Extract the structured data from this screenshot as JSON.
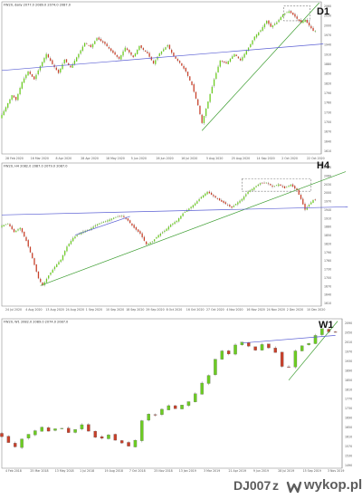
{
  "chart_data": [
    {
      "type": "candlestick",
      "timeframe_label": "D1",
      "header_text": "FW20, daily 2077.0 2089.0 2074.0 2087.0",
      "x_tick_labels": [
        "28 Feb 2020",
        "16 Mar 2020",
        "8 Apr 2020",
        "28 Apr 2020",
        "18 May 2020",
        "5 Jun 2020",
        "26 Jun 2020",
        "16 Jul 2020",
        "5 Aug 2020",
        "25 Aug 2020",
        "14 Sep 2020",
        "2 Oct 2020",
        "22 Oct 2020"
      ],
      "y_tick_labels": [
        "2060",
        "2030",
        "2000",
        "1970",
        "1940",
        "1910",
        "1880",
        "1850",
        "1820",
        "1790",
        "1760",
        "1730",
        "1700",
        "1670",
        "1640",
        "1610"
      ],
      "ylim": [
        1600,
        2075
      ],
      "price_path": [
        [
          0,
          1705
        ],
        [
          6,
          1742
        ],
        [
          12,
          1780
        ],
        [
          16,
          1765
        ],
        [
          22,
          1822
        ],
        [
          28,
          1855
        ],
        [
          34,
          1830
        ],
        [
          40,
          1872
        ],
        [
          46,
          1910
        ],
        [
          52,
          1878
        ],
        [
          58,
          1850
        ],
        [
          64,
          1892
        ],
        [
          70,
          1868
        ],
        [
          78,
          1910
        ],
        [
          84,
          1945
        ],
        [
          90,
          1932
        ],
        [
          96,
          1960
        ],
        [
          104,
          1942
        ],
        [
          110,
          1920
        ],
        [
          118,
          1895
        ],
        [
          124,
          1930
        ],
        [
          132,
          1900
        ],
        [
          138,
          1935
        ],
        [
          146,
          1912
        ],
        [
          152,
          1880
        ],
        [
          158,
          1912
        ],
        [
          166,
          1938
        ],
        [
          172,
          1902
        ],
        [
          178,
          1882
        ],
        [
          184,
          1855
        ],
        [
          190,
          1812
        ],
        [
          196,
          1748
        ],
        [
          200,
          1692
        ],
        [
          206,
          1760
        ],
        [
          212,
          1830
        ],
        [
          218,
          1890
        ],
        [
          224,
          1880
        ],
        [
          232,
          1910
        ],
        [
          238,
          1890
        ],
        [
          246,
          1930
        ],
        [
          252,
          1965
        ],
        [
          258,
          1985
        ],
        [
          264,
          2015
        ],
        [
          268,
          1996
        ],
        [
          274,
          2010
        ],
        [
          280,
          2035
        ],
        [
          286,
          2045
        ],
        [
          292,
          2028
        ],
        [
          298,
          2008
        ],
        [
          302,
          2018
        ],
        [
          306,
          2000
        ],
        [
          310,
          1983
        ]
      ],
      "trendlines": [
        {
          "kind": "support",
          "color": "#3a9c2e",
          "from": [
            198,
            1668
          ],
          "to": [
            314,
            2072
          ]
        },
        {
          "kind": "resistance",
          "color": "#5a5fd4",
          "from": [
            0,
            1858
          ],
          "to": [
            318,
            1942
          ]
        }
      ],
      "zones": [
        {
          "from_index": 279,
          "to_index": 305,
          "low": 2015,
          "high": 2062
        }
      ]
    },
    {
      "type": "candlestick",
      "timeframe_label": "H4",
      "header_text": "FW20, H4 2082.0 2087.0 2079.0 2087.0",
      "x_tick_labels": [
        "24 Jul 2020",
        "4 Aug 2020",
        "13 Aug 2020",
        "24 Aug 2020",
        "1 Sep 2020",
        "10 Sep 2020",
        "18 Sep 2020",
        "29 Sep 2020",
        "8 Oct 2020",
        "16 Oct 2020",
        "27 Oct 2020",
        "4 Nov 2020",
        "16 Nov 2020",
        "24 Nov 2020",
        "2 Dec 2020",
        "10 Dec 2020",
        "21 Dec 2020",
        "30 Dec 2020",
        "11 Jan 2021",
        "19 Jan 2021",
        "28 Jan 2021",
        "5 Feb 2021",
        "16 Feb 2021",
        "24 Feb 2021",
        "4 Mar 2021",
        "12 Mar 2021",
        "23 Mar 2021",
        "31 Mar 2021",
        "8 Apr 2021",
        "16 Apr 2021",
        "27 Apr 2021",
        "5 May 2021",
        "13 May 2021",
        "24 May 2021",
        "2 Jun 2021",
        "10 Jun 2021",
        "18 Jun 2021",
        "28 Jun 2021",
        "6 Jul 2021",
        "14 Jul 2021",
        "22 Jul 2021",
        "30 Jul 2021"
      ],
      "y_tick_labels": [
        "2090",
        "2060",
        "2030",
        "2000",
        "1970",
        "1940",
        "1910",
        "1880",
        "1850",
        "1820",
        "1790",
        "1760",
        "1730",
        "1700",
        "1670",
        "1640",
        "1610"
      ],
      "ylim": [
        1600,
        2090
      ],
      "price_path": [
        [
          0,
          1870
        ],
        [
          8,
          1880
        ],
        [
          14,
          1850
        ],
        [
          20,
          1865
        ],
        [
          26,
          1820
        ],
        [
          32,
          1760
        ],
        [
          38,
          1690
        ],
        [
          42,
          1665
        ],
        [
          48,
          1700
        ],
        [
          54,
          1730
        ],
        [
          60,
          1755
        ],
        [
          66,
          1800
        ],
        [
          72,
          1830
        ],
        [
          80,
          1850
        ],
        [
          88,
          1860
        ],
        [
          96,
          1878
        ],
        [
          104,
          1888
        ],
        [
          112,
          1900
        ],
        [
          120,
          1908
        ],
        [
          126,
          1890
        ],
        [
          132,
          1865
        ],
        [
          138,
          1845
        ],
        [
          144,
          1808
        ],
        [
          150,
          1818
        ],
        [
          156,
          1840
        ],
        [
          162,
          1855
        ],
        [
          168,
          1876
        ],
        [
          174,
          1890
        ],
        [
          180,
          1915
        ],
        [
          186,
          1932
        ],
        [
          192,
          1950
        ],
        [
          198,
          1972
        ],
        [
          204,
          1990
        ],
        [
          210,
          1975
        ],
        [
          216,
          1960
        ],
        [
          222,
          1948
        ],
        [
          228,
          1935
        ],
        [
          232,
          1948
        ],
        [
          238,
          1965
        ],
        [
          244,
          1990
        ],
        [
          250,
          2005
        ],
        [
          256,
          2020
        ],
        [
          262,
          2022
        ],
        [
          268,
          2008
        ],
        [
          274,
          2016
        ],
        [
          280,
          2002
        ],
        [
          286,
          2015
        ],
        [
          292,
          1995
        ],
        [
          296,
          1965
        ],
        [
          300,
          1928
        ],
        [
          304,
          1945
        ],
        [
          308,
          1962
        ]
      ],
      "trendlines": [
        {
          "kind": "support",
          "color": "#3a9c2e",
          "from": [
            38,
            1665
          ],
          "to": [
            338,
            2060
          ]
        },
        {
          "kind": "resistance",
          "color": "#5a5fd4",
          "from": [
            0,
            1910
          ],
          "to": [
            340,
            1938
          ]
        },
        {
          "kind": "channel",
          "color": "#5a5fd4",
          "from": [
            72,
            1840
          ],
          "to": [
            126,
            1905
          ]
        }
      ],
      "zones": [
        {
          "from_index": 236,
          "to_index": 304,
          "low": 1992,
          "high": 2035
        }
      ]
    },
    {
      "type": "candlestick",
      "timeframe_label": "W1",
      "header_text": "FW20, W1 2082.0 2089.0 2074.0 2087.0",
      "x_tick_labels": [
        "4 Feb 2018",
        "25 Mar 2018",
        "13 May 2018",
        "1 Jul 2018",
        "19 Aug 2018",
        "7 Oct 2018",
        "25 Nov 2018",
        "13 Jan 2019",
        "3 Mar 2019",
        "21 Apr 2019",
        "9 Jun 2019",
        "28 Jul 2019",
        "15 Sep 2019",
        "3 Nov 2019",
        "22 Dec 2019",
        "9 Feb 2020",
        "29 Mar 2020",
        "17 May 2020",
        "5 Jul 2020",
        "23 Aug 2020",
        "11 Oct 2020",
        "29 Nov 2020"
      ],
      "y_tick_labels": [
        "2090",
        "2050",
        "2010",
        "1970",
        "1930",
        "1890",
        "1850",
        "1810",
        "1770",
        "1730",
        "1690",
        "1650",
        "1610",
        "1570",
        "1530",
        "1490"
      ],
      "ylim": [
        1480,
        2100
      ],
      "price_path": [
        [
          0,
          1620
        ],
        [
          6,
          1605
        ],
        [
          12,
          1580
        ],
        [
          18,
          1562
        ],
        [
          24,
          1595
        ],
        [
          30,
          1615
        ],
        [
          36,
          1630
        ],
        [
          42,
          1645
        ],
        [
          48,
          1628
        ],
        [
          54,
          1638
        ],
        [
          60,
          1640
        ],
        [
          66,
          1622
        ],
        [
          72,
          1635
        ],
        [
          78,
          1655
        ],
        [
          84,
          1628
        ],
        [
          90,
          1602
        ],
        [
          96,
          1598
        ],
        [
          102,
          1612
        ],
        [
          108,
          1590
        ],
        [
          114,
          1578
        ],
        [
          120,
          1565
        ],
        [
          126,
          1590
        ],
        [
          132,
          1672
        ],
        [
          138,
          1700
        ],
        [
          144,
          1695
        ],
        [
          150,
          1720
        ],
        [
          156,
          1735
        ],
        [
          162,
          1722
        ],
        [
          168,
          1738
        ],
        [
          174,
          1752
        ],
        [
          180,
          1785
        ],
        [
          186,
          1830
        ],
        [
          192,
          1862
        ],
        [
          198,
          1930
        ],
        [
          204,
          1965
        ],
        [
          210,
          1952
        ],
        [
          216,
          1990
        ],
        [
          222,
          2002
        ],
        [
          228,
          1985
        ],
        [
          234,
          1968
        ],
        [
          240,
          1992
        ],
        [
          246,
          1978
        ],
        [
          252,
          1958
        ],
        [
          258,
          1900
        ],
        [
          262,
          1870
        ],
        [
          268,
          1955
        ],
        [
          274,
          1985
        ],
        [
          280,
          1990
        ],
        [
          286,
          2010
        ],
        [
          290,
          2050
        ],
        [
          296,
          2063
        ],
        [
          300,
          2045
        ]
      ],
      "trendlines": [
        {
          "kind": "support",
          "color": "#3a9c2e",
          "from": [
            258,
            1842
          ],
          "to": [
            302,
            2090
          ]
        },
        {
          "kind": "resistance",
          "color": "#5a5fd4",
          "from": [
            216,
            1998
          ],
          "to": [
            300,
            2030
          ]
        }
      ],
      "zones": []
    }
  ],
  "footer": {
    "username": "DJ007",
    "gender_marker": "z",
    "site": "wykop.pl",
    "logo_icon": "wykop-logo-icon"
  }
}
